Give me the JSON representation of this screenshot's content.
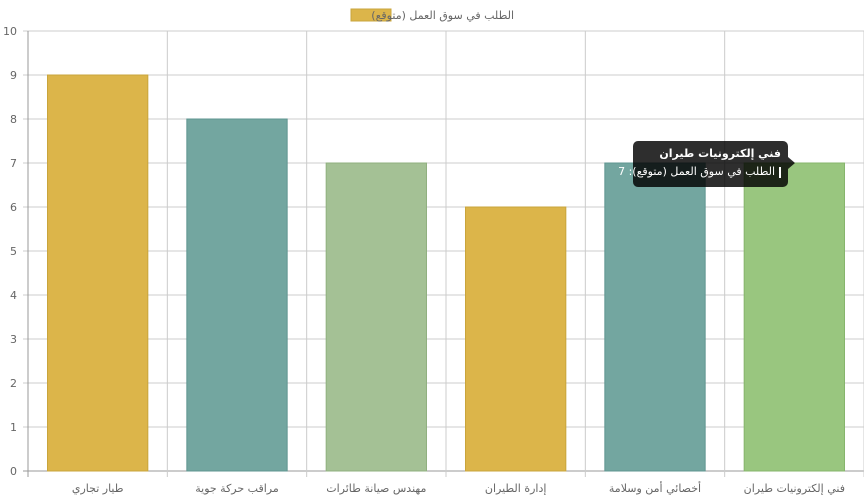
{
  "chart_data": {
    "type": "bar",
    "categories": [
      "طيار تجاري",
      "مراقب حركة جوية",
      "مهندس صيانة طائرات",
      "إدارة الطيران",
      "أخصائي أمن وسلامة",
      "فني إلكترونيات طيران"
    ],
    "series": [
      {
        "name": "الطلب في سوق العمل (متوقع)",
        "values": [
          9,
          8,
          7,
          6,
          7,
          7
        ]
      }
    ],
    "bar_colors": [
      "#dcb54a",
      "#73a6a0",
      "#a4c195",
      "#dcb54a",
      "#73a6a0",
      "#99c67f"
    ],
    "bar_border_colors": [
      "#c9a53c",
      "#5f9590",
      "#8fb07f",
      "#c9a53c",
      "#5f9590",
      "#86b56b"
    ],
    "legend_color": "#dcb54a",
    "ylim": [
      0,
      10
    ],
    "yticks": [
      "0",
      "1",
      "2",
      "3",
      "4",
      "5",
      "6",
      "7",
      "8",
      "9",
      "10"
    ],
    "grid": true,
    "legend_position": "top-center"
  },
  "tooltip": {
    "title": "فني إلكترونيات طيران",
    "label": "الطلب في سوق العمل (متوقع): 7",
    "swatch_color": "#99c67f"
  }
}
